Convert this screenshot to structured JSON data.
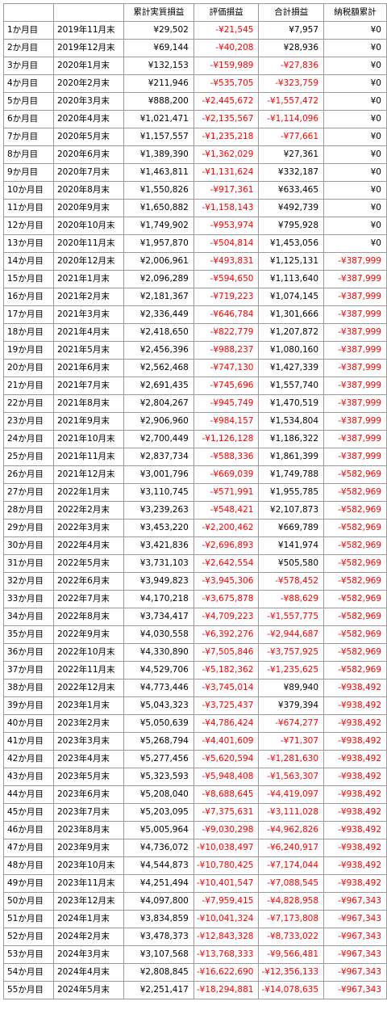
{
  "columns": [
    "",
    "",
    "累計実質損益",
    "評価損益",
    "合計損益",
    "納税額累計"
  ],
  "rows": [
    [
      "1か月目",
      "2019年11月末",
      "¥29,502",
      "-¥21,545",
      "¥7,957",
      "¥0"
    ],
    [
      "2か月目",
      "2019年12月末",
      "¥69,144",
      "-¥40,208",
      "¥28,936",
      "¥0"
    ],
    [
      "3か月目",
      "2020年1月末",
      "¥132,153",
      "-¥159,989",
      "-¥27,836",
      "¥0"
    ],
    [
      "4か月目",
      "2020年2月末",
      "¥211,946",
      "-¥535,705",
      "-¥323,759",
      "¥0"
    ],
    [
      "5か月目",
      "2020年3月末",
      "¥888,200",
      "-¥2,445,672",
      "-¥1,557,472",
      "¥0"
    ],
    [
      "6か月目",
      "2020年4月末",
      "¥1,021,471",
      "-¥2,135,567",
      "-¥1,114,096",
      "¥0"
    ],
    [
      "7か月目",
      "2020年5月末",
      "¥1,157,557",
      "-¥1,235,218",
      "-¥77,661",
      "¥0"
    ],
    [
      "8か月目",
      "2020年6月末",
      "¥1,389,390",
      "-¥1,362,029",
      "¥27,361",
      "¥0"
    ],
    [
      "9か月目",
      "2020年7月末",
      "¥1,463,811",
      "-¥1,131,624",
      "¥332,187",
      "¥0"
    ],
    [
      "10か月目",
      "2020年8月末",
      "¥1,550,826",
      "-¥917,361",
      "¥633,465",
      "¥0"
    ],
    [
      "11か月目",
      "2020年9月末",
      "¥1,650,882",
      "-¥1,158,143",
      "¥492,739",
      "¥0"
    ],
    [
      "12か月目",
      "2020年10月末",
      "¥1,749,902",
      "-¥953,974",
      "¥795,928",
      "¥0"
    ],
    [
      "13か月目",
      "2020年11月末",
      "¥1,957,870",
      "-¥504,814",
      "¥1,453,056",
      "¥0"
    ],
    [
      "14か月目",
      "2020年12月末",
      "¥2,006,961",
      "-¥493,831",
      "¥1,125,131",
      "-¥387,999"
    ],
    [
      "15か月目",
      "2021年1月末",
      "¥2,096,289",
      "-¥594,650",
      "¥1,113,640",
      "-¥387,999"
    ],
    [
      "16か月目",
      "2021年2月末",
      "¥2,181,367",
      "-¥719,223",
      "¥1,074,145",
      "-¥387,999"
    ],
    [
      "17か月目",
      "2021年3月末",
      "¥2,336,449",
      "-¥646,784",
      "¥1,301,666",
      "-¥387,999"
    ],
    [
      "18か月目",
      "2021年4月末",
      "¥2,418,650",
      "-¥822,779",
      "¥1,207,872",
      "-¥387,999"
    ],
    [
      "19か月目",
      "2021年5月末",
      "¥2,456,396",
      "-¥988,237",
      "¥1,080,160",
      "-¥387,999"
    ],
    [
      "20か月目",
      "2021年6月末",
      "¥2,562,468",
      "-¥747,130",
      "¥1,427,339",
      "-¥387,999"
    ],
    [
      "21か月目",
      "2021年7月末",
      "¥2,691,435",
      "-¥745,696",
      "¥1,557,740",
      "-¥387,999"
    ],
    [
      "22か月目",
      "2021年8月末",
      "¥2,804,267",
      "-¥945,749",
      "¥1,470,519",
      "-¥387,999"
    ],
    [
      "23か月目",
      "2021年9月末",
      "¥2,906,960",
      "-¥984,157",
      "¥1,534,804",
      "-¥387,999"
    ],
    [
      "24か月目",
      "2021年10月末",
      "¥2,700,449",
      "-¥1,126,128",
      "¥1,186,322",
      "-¥387,999"
    ],
    [
      "25か月目",
      "2021年11月末",
      "¥2,837,734",
      "-¥588,336",
      "¥1,861,399",
      "-¥387,999"
    ],
    [
      "26か月目",
      "2021年12月末",
      "¥3,001,796",
      "-¥669,039",
      "¥1,749,788",
      "-¥582,969"
    ],
    [
      "27か月目",
      "2022年1月末",
      "¥3,110,745",
      "-¥571,991",
      "¥1,955,785",
      "-¥582,969"
    ],
    [
      "28か月目",
      "2022年2月末",
      "¥3,239,263",
      "-¥548,421",
      "¥2,107,873",
      "-¥582,969"
    ],
    [
      "29か月目",
      "2022年3月末",
      "¥3,453,220",
      "-¥2,200,462",
      "¥669,789",
      "-¥582,969"
    ],
    [
      "30か月目",
      "2022年4月末",
      "¥3,421,836",
      "-¥2,696,893",
      "¥141,974",
      "-¥582,969"
    ],
    [
      "31か月目",
      "2022年5月末",
      "¥3,731,103",
      "-¥2,642,554",
      "¥505,580",
      "-¥582,969"
    ],
    [
      "32か月目",
      "2022年6月末",
      "¥3,949,823",
      "-¥3,945,306",
      "-¥578,452",
      "-¥582,969"
    ],
    [
      "33か月目",
      "2022年7月末",
      "¥4,170,218",
      "-¥3,675,878",
      "-¥88,629",
      "-¥582,969"
    ],
    [
      "34か月目",
      "2022年8月末",
      "¥3,734,417",
      "-¥4,709,223",
      "-¥1,557,775",
      "-¥582,969"
    ],
    [
      "35か月目",
      "2022年9月末",
      "¥4,030,558",
      "-¥6,392,276",
      "-¥2,944,687",
      "-¥582,969"
    ],
    [
      "36か月目",
      "2022年10月末",
      "¥4,330,890",
      "-¥7,505,846",
      "-¥3,757,925",
      "-¥582,969"
    ],
    [
      "37か月目",
      "2022年11月末",
      "¥4,529,706",
      "-¥5,182,362",
      "-¥1,235,625",
      "-¥582,969"
    ],
    [
      "38か月目",
      "2022年12月末",
      "¥4,773,446",
      "-¥3,745,014",
      "¥89,940",
      "-¥938,492"
    ],
    [
      "39か月目",
      "2023年1月末",
      "¥5,043,323",
      "-¥3,725,437",
      "¥379,394",
      "-¥938,492"
    ],
    [
      "40か月目",
      "2023年2月末",
      "¥5,050,639",
      "-¥4,786,424",
      "-¥674,277",
      "-¥938,492"
    ],
    [
      "41か月目",
      "2023年3月末",
      "¥5,268,794",
      "-¥4,401,609",
      "-¥71,307",
      "-¥938,492"
    ],
    [
      "42か月目",
      "2023年4月末",
      "¥5,277,456",
      "-¥5,620,594",
      "-¥1,281,630",
      "-¥938,492"
    ],
    [
      "43か月目",
      "2023年5月末",
      "¥5,323,593",
      "-¥5,948,408",
      "-¥1,563,307",
      "-¥938,492"
    ],
    [
      "44か月目",
      "2023年6月末",
      "¥5,208,040",
      "-¥8,688,645",
      "-¥4,419,097",
      "-¥938,492"
    ],
    [
      "45か月目",
      "2023年7月末",
      "¥5,203,095",
      "-¥7,375,631",
      "-¥3,111,028",
      "-¥938,492"
    ],
    [
      "46か月目",
      "2023年8月末",
      "¥5,005,964",
      "-¥9,030,298",
      "-¥4,962,826",
      "-¥938,492"
    ],
    [
      "47か月目",
      "2023年9月末",
      "¥4,736,072",
      "-¥10,038,497",
      "-¥6,240,917",
      "-¥938,492"
    ],
    [
      "48か月目",
      "2023年10月末",
      "¥4,544,873",
      "-¥10,780,425",
      "-¥7,174,044",
      "-¥938,492"
    ],
    [
      "49か月目",
      "2023年11月末",
      "¥4,251,494",
      "-¥10,401,547",
      "-¥7,088,545",
      "-¥938,492"
    ],
    [
      "50か月目",
      "2023年12月末",
      "¥4,097,800",
      "-¥7,959,415",
      "-¥4,828,958",
      "-¥967,343"
    ],
    [
      "51か月目",
      "2024年1月末",
      "¥3,834,859",
      "-¥10,041,324",
      "-¥7,173,808",
      "-¥967,343"
    ],
    [
      "52か月目",
      "2024年2月末",
      "¥3,478,373",
      "-¥12,843,328",
      "-¥8,733,022",
      "-¥967,343"
    ],
    [
      "53か月目",
      "2024年3月末",
      "¥3,107,568",
      "-¥13,768,333",
      "-¥9,566,481",
      "-¥967,343"
    ],
    [
      "54か月目",
      "2024年4月末",
      "¥2,808,845",
      "-¥16,622,690",
      "-¥12,356,133",
      "-¥967,343"
    ],
    [
      "55か月目",
      "2024年5月末",
      "¥2,251,417",
      "-¥18,294,881",
      "-¥14,078,635",
      "-¥967,343"
    ]
  ],
  "colors": {
    "negative": "#ff0000",
    "positive": "#000000",
    "border": "#9a9a9a"
  }
}
